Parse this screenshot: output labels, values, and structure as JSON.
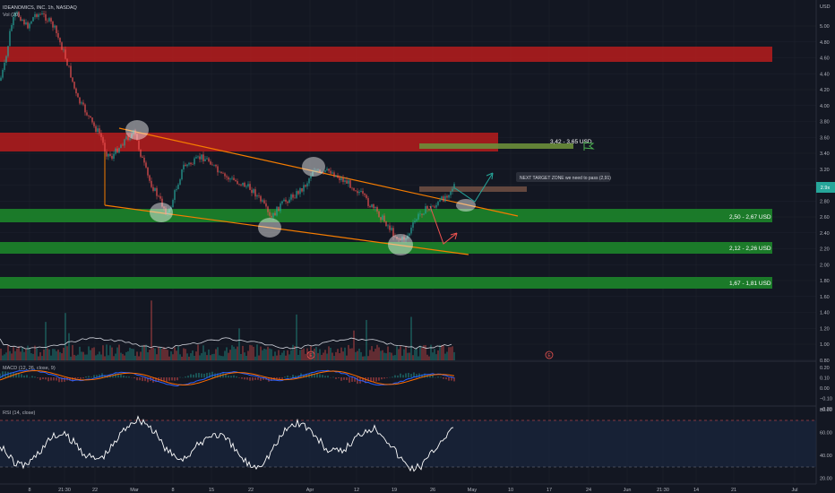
{
  "header": {
    "symbol_line": "IDEANOMICS, INC. 1h, NASDAQ",
    "vol_label": "Vol (20)",
    "currency": "USD"
  },
  "price_axis": {
    "ticks": [
      "5.00",
      "4.80",
      "4.60",
      "4.40",
      "4.20",
      "4.00",
      "3.80",
      "3.60",
      "3.40",
      "3.20",
      "3.00",
      "2.80",
      "2.60",
      "2.40",
      "2.20",
      "2.00",
      "1.80",
      "1.60",
      "1.40",
      "1.20",
      "1.00",
      "0.80"
    ],
    "current_price": "2.9x"
  },
  "macd_panel": {
    "label": "MACD (12, 26, close, 9)",
    "ticks": [
      "0.20",
      "0.10",
      "0.00",
      "−0.10",
      "−0.20"
    ]
  },
  "rsi_panel": {
    "label": "RSI (14, close)",
    "ticks": [
      "80.00",
      "60.00",
      "40.00",
      "20.00"
    ]
  },
  "time_axis": {
    "labels": [
      "8",
      "21:30",
      "22",
      "Mar",
      "8",
      "15",
      "22",
      "Apr",
      "12",
      "19",
      "26",
      "May",
      "10",
      "17",
      "24",
      "Jun",
      "21:30",
      "14",
      "21",
      "Jul"
    ]
  },
  "zones": [
    {
      "label": "3,42 - 3,65 USD",
      "color": "#b71c1c"
    },
    {
      "label": "2,50 - 2,67 USD",
      "color": "#1b7f2a"
    },
    {
      "label": "2,12 - 2,26 USD",
      "color": "#1b7f2a"
    },
    {
      "label": "1,67 - 1,81 USD",
      "color": "#1b7f2a"
    }
  ],
  "annotations": {
    "next_target": "NEXT TARGET ZONE we need to pass (2,91)",
    "earnings_marker": "E"
  },
  "colors": {
    "background": "#131722",
    "resistance": "#b71c1c",
    "support": "#1b7f2a",
    "trendline": "#f57c00",
    "up_candle": "#26a69a",
    "down_candle": "#ef5350",
    "macd_line": "#2962ff",
    "signal_line": "#ff6d00"
  }
}
